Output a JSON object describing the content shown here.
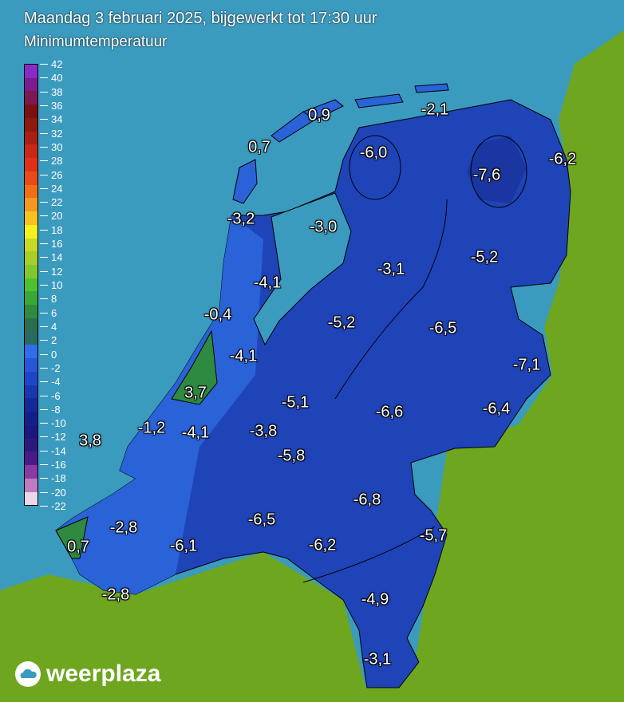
{
  "header": {
    "title": "Maandag 3 februari 2025, bijgewerkt tot 17:30 uur",
    "subtitle": "Minimumtemperatuur"
  },
  "legend": {
    "ticks": [
      "42",
      "40",
      "38",
      "36",
      "34",
      "32",
      "30",
      "28",
      "26",
      "24",
      "22",
      "20",
      "18",
      "16",
      "14",
      "12",
      "10",
      "8",
      "6",
      "4",
      "2",
      "0",
      "-2",
      "-4",
      "-6",
      "-8",
      "-10",
      "-12",
      "-14",
      "-16",
      "-18",
      "-20",
      "-22"
    ],
    "colors": [
      "#8a2bc8",
      "#7a1c8f",
      "#7a1a50",
      "#7a1010",
      "#8c1a10",
      "#a82014",
      "#c82818",
      "#e03018",
      "#e84a18",
      "#f07018",
      "#f49820",
      "#f8c020",
      "#f4f020",
      "#c8d828",
      "#a8cc28",
      "#80c830",
      "#50c030",
      "#38a838",
      "#2e8a40",
      "#2a6e50",
      "#2a6a60",
      "#2f6ee8",
      "#2558d8",
      "#1e46c8",
      "#1838b0",
      "#142a98",
      "#14208a",
      "#1a1880",
      "#2a1a80",
      "#4a1a8a",
      "#8a3aa0",
      "#c07ac0",
      "#e8d8ec"
    ]
  },
  "values": [
    "0,9",
    "-2,1",
    "0,7",
    "-6,0",
    "-7,6",
    "-6,2",
    "-3,2",
    "-3,0",
    "-3,1",
    "-5,2",
    "-4,1",
    "-0,4",
    "-5,2",
    "-6,5",
    "-4,1",
    "-7,1",
    "3,7",
    "-5,1",
    "-6,6",
    "-6,4",
    "3,8",
    "-1,2",
    "-4,1",
    "-3,8",
    "-5,8",
    "-6,8",
    "-6,5",
    "-2,8",
    "-5,7",
    "0,7",
    "-6,1",
    "-6,2",
    "-2,8",
    "-4,9",
    "-3,1"
  ],
  "colors": {
    "sea": "#3b9bbf",
    "land": "#6fa620",
    "nl": "#1f44b8"
  },
  "logo": {
    "text": "weerplaza"
  }
}
